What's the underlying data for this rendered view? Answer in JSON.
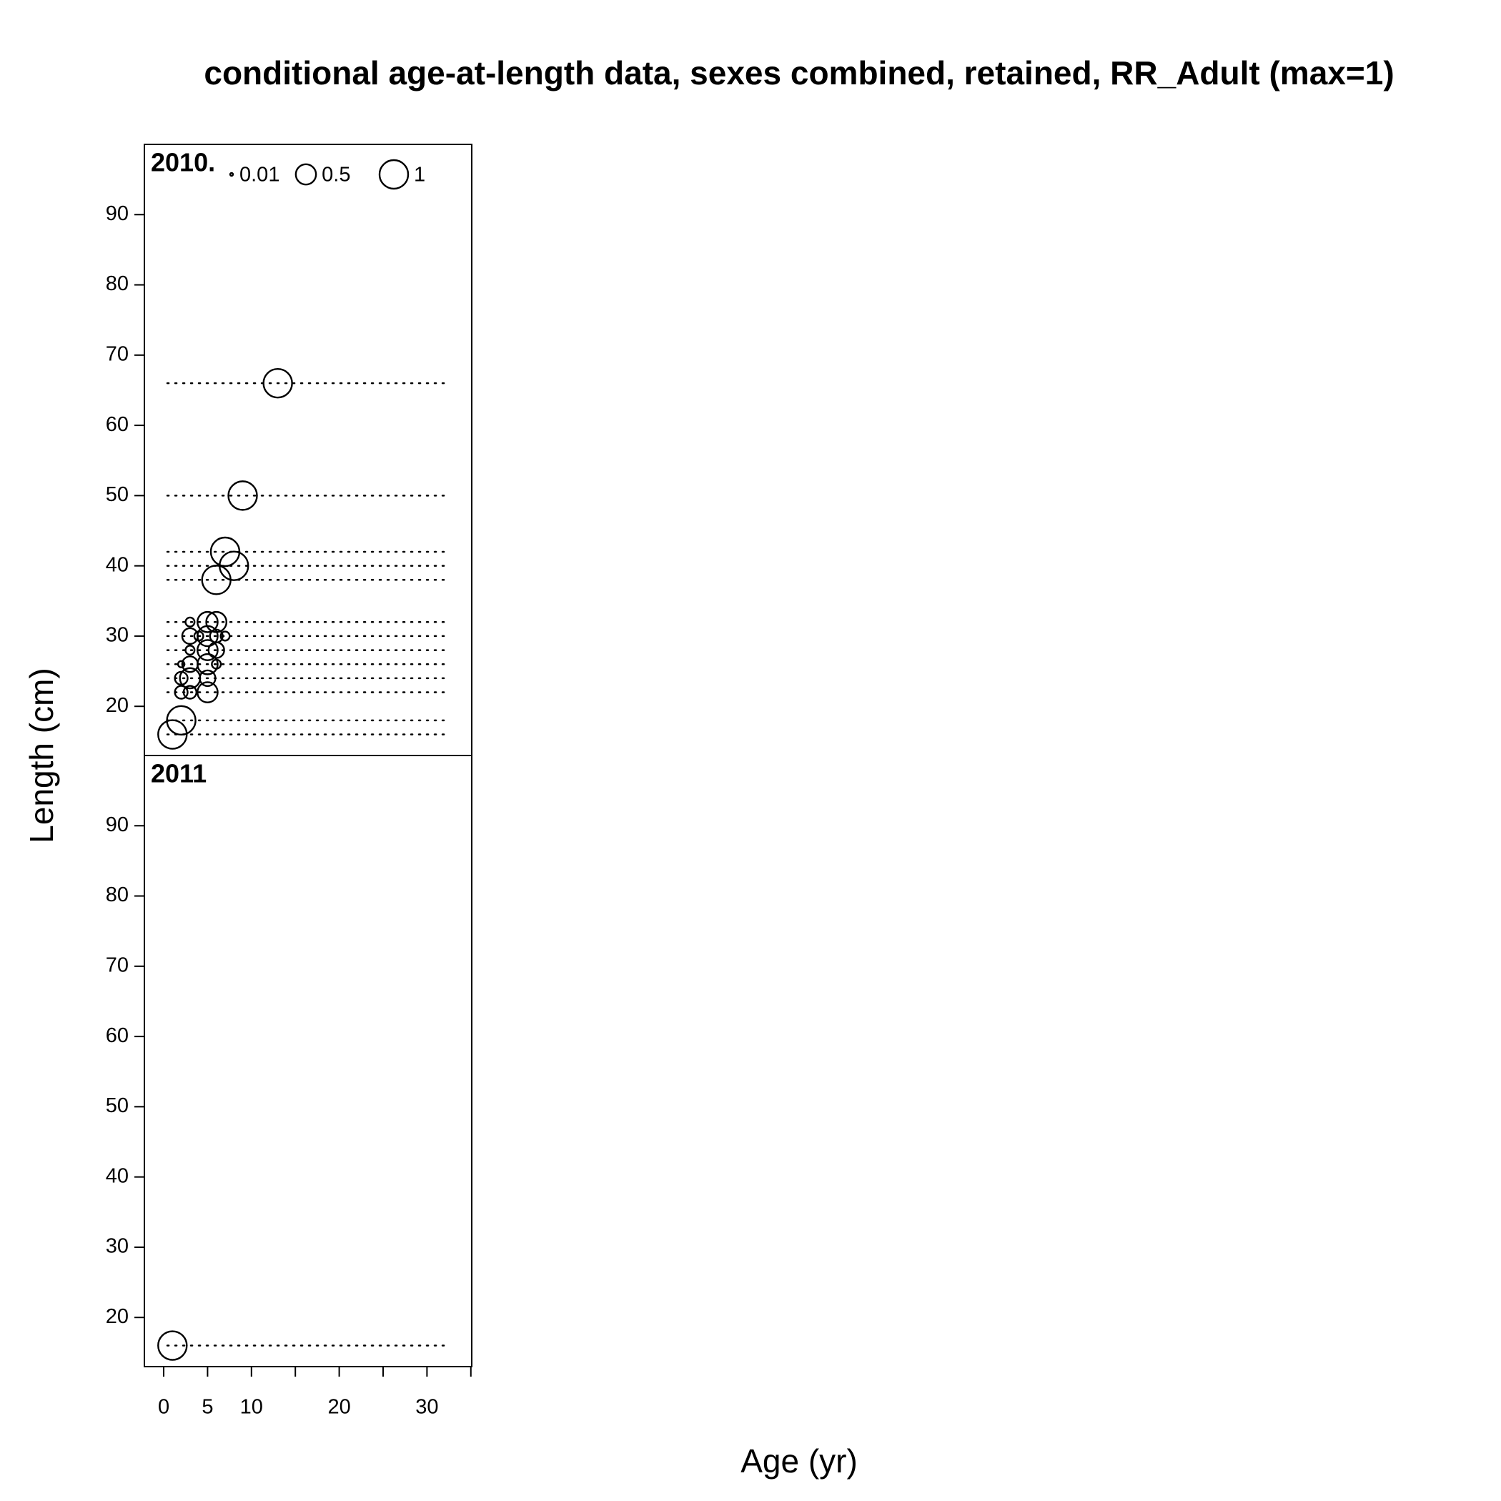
{
  "chart_data": {
    "type": "bubble",
    "title": "conditional age-at-length data, sexes combined, retained, RR_Adult (max=1)",
    "x_label": "Age (yr)",
    "y_label": "Length (cm)",
    "xlim": [
      -2.2,
      35.1
    ],
    "xticks": [
      0,
      5,
      10,
      20,
      30
    ],
    "xticks_unlabeled": [
      15,
      25,
      35
    ],
    "ylim": [
      13,
      100
    ],
    "yticks": [
      20,
      30,
      40,
      50,
      60,
      70,
      80,
      90
    ],
    "size_legend": [
      0.01,
      0.5,
      1
    ],
    "color": "#000000",
    "panels": [
      {
        "label": "2010.",
        "rows": [
          66,
          50,
          42,
          40,
          38,
          32,
          30,
          28,
          26,
          24,
          22,
          18,
          16
        ],
        "x": [
          13,
          9,
          7,
          8,
          6,
          3,
          5,
          6,
          3,
          4,
          5,
          6,
          7,
          3,
          5,
          6,
          2,
          3,
          5,
          6,
          2,
          3,
          5,
          2,
          3,
          5,
          2,
          1
        ],
        "y": [
          66,
          50,
          42,
          40,
          38,
          32,
          32,
          32,
          30,
          30,
          30,
          30,
          30,
          28,
          28,
          28,
          26,
          26,
          26,
          26,
          24,
          24,
          24,
          22,
          22,
          22,
          18,
          16
        ],
        "size": [
          1,
          1,
          1,
          1,
          1,
          0.1,
          0.5,
          0.5,
          0.3,
          0.1,
          0.5,
          0.2,
          0.1,
          0.1,
          0.5,
          0.3,
          0.05,
          0.3,
          0.5,
          0.1,
          0.2,
          0.5,
          0.3,
          0.2,
          0.2,
          0.5,
          1,
          1
        ]
      },
      {
        "label": "2011",
        "rows": [
          16
        ],
        "x": [
          1
        ],
        "y": [
          16
        ],
        "size": [
          1
        ]
      }
    ]
  }
}
